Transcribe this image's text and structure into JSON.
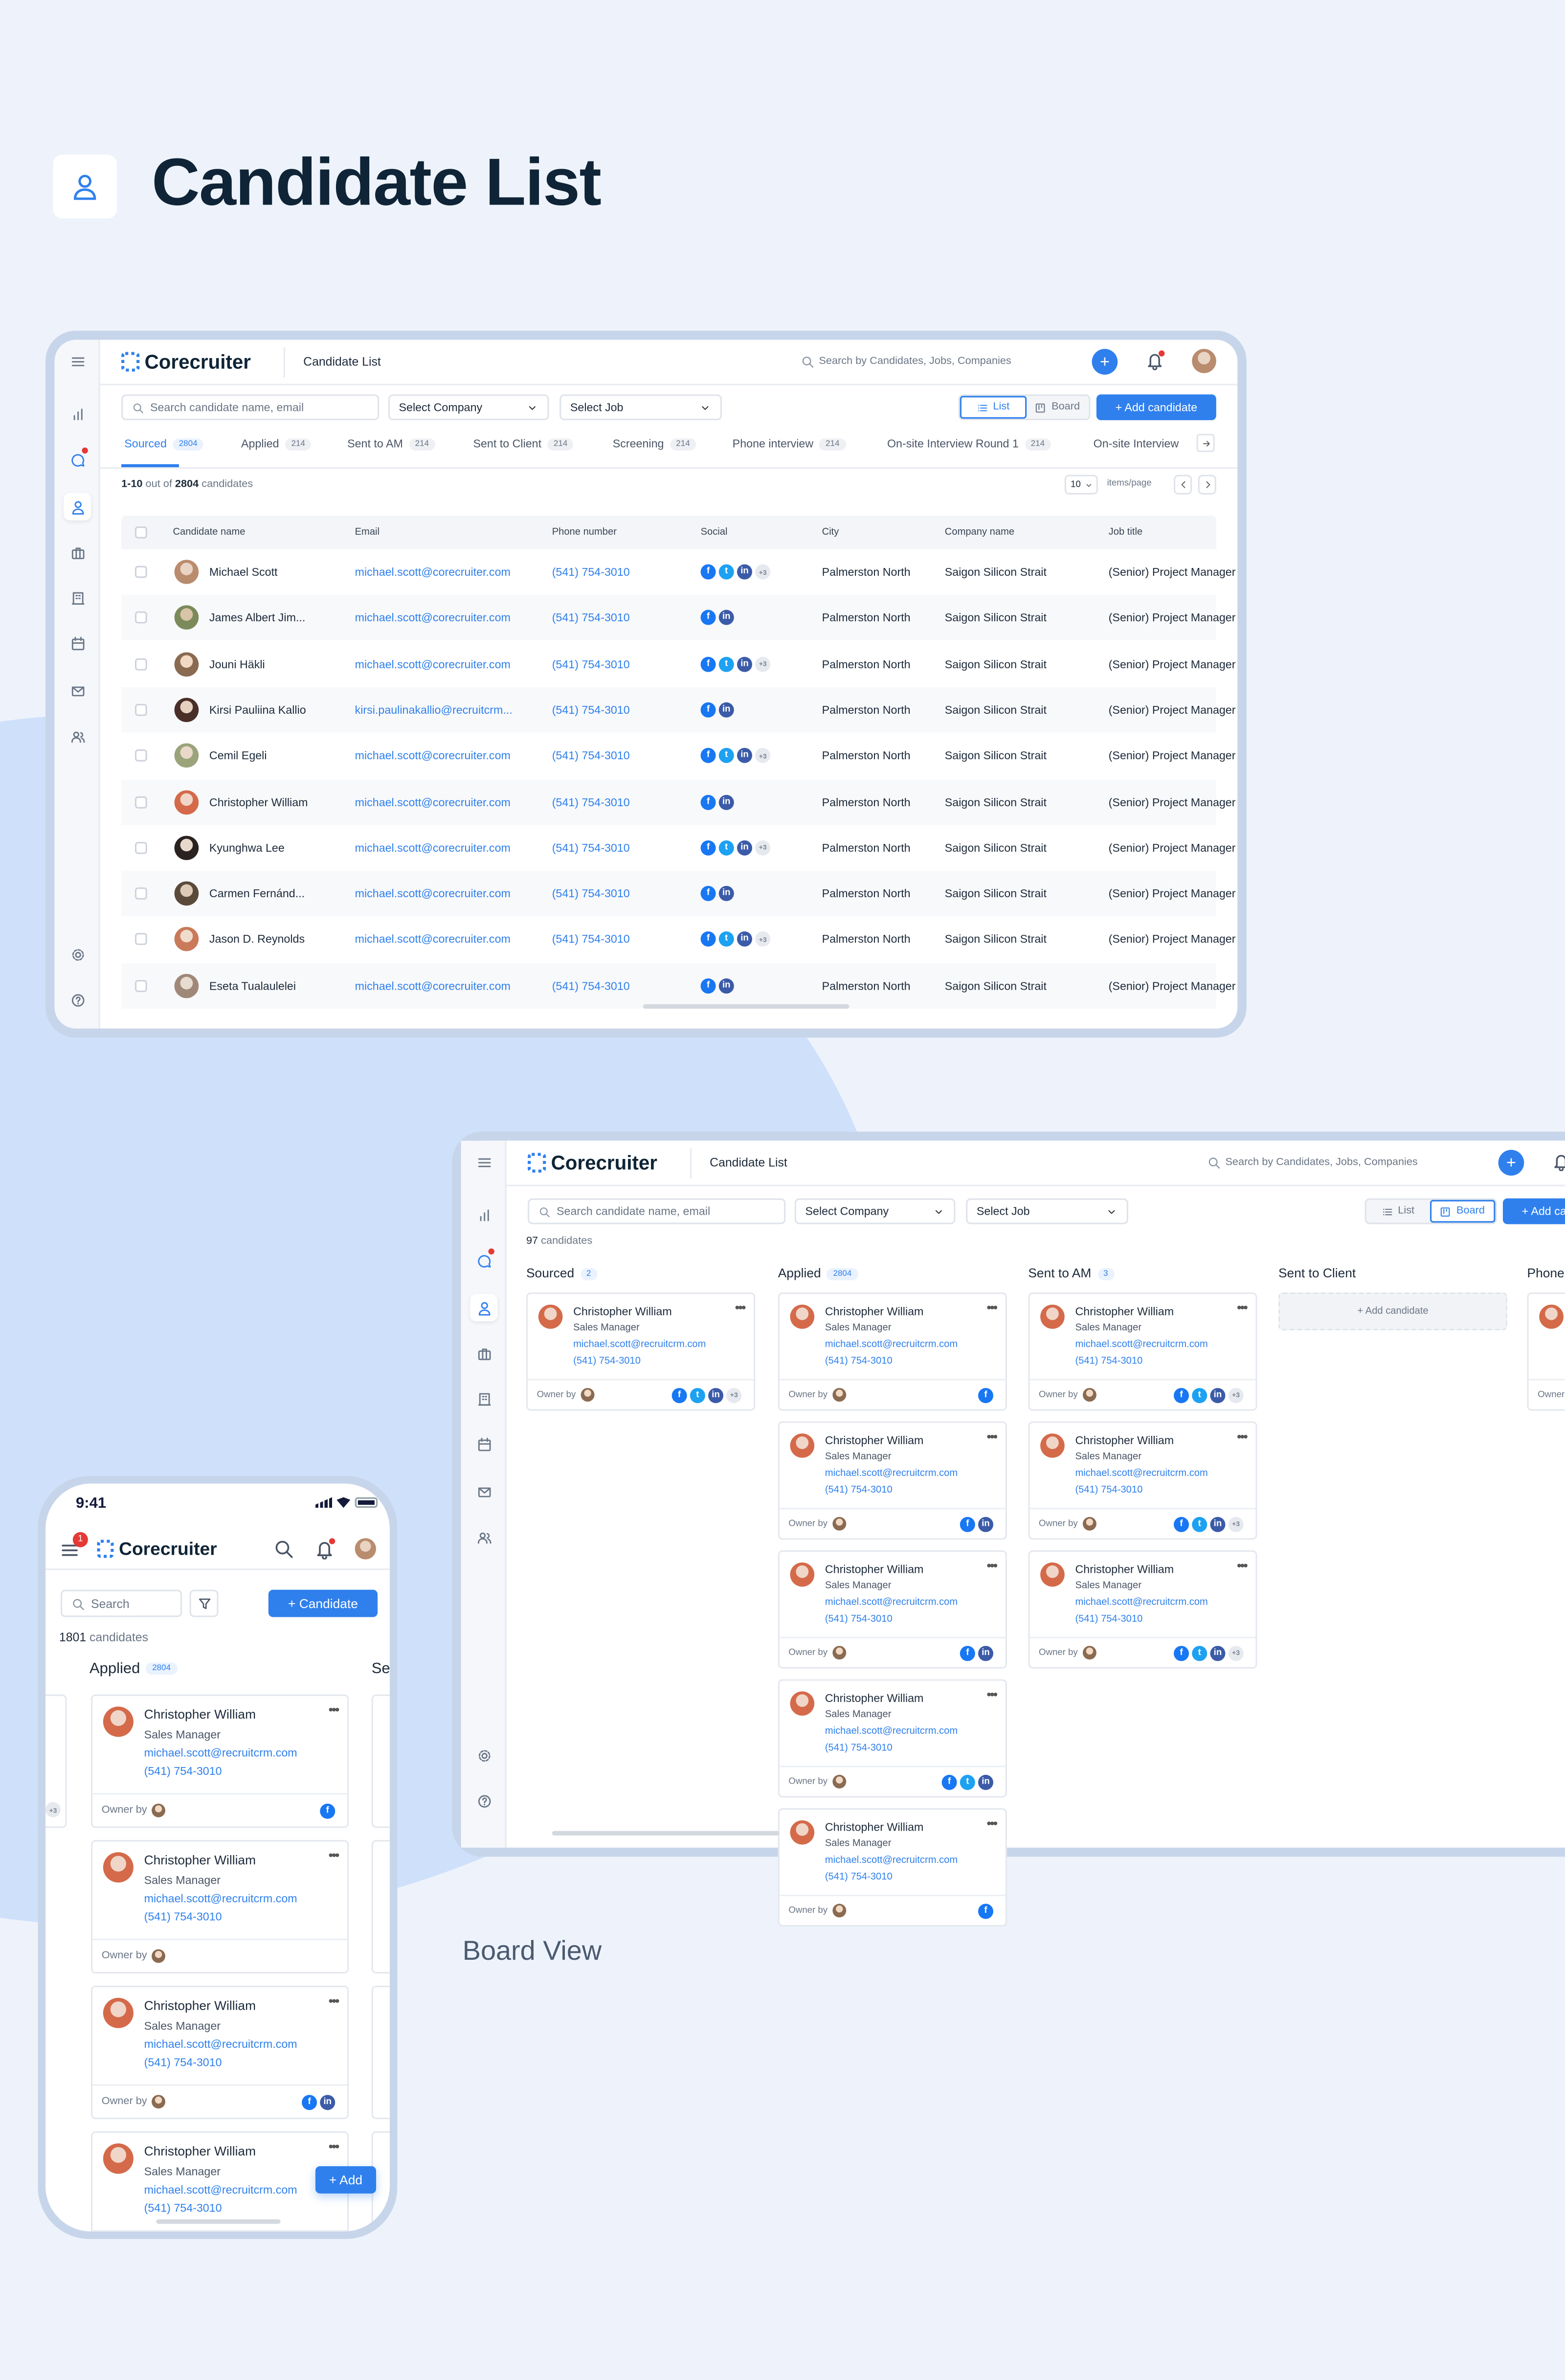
{
  "page": {
    "title": "Candidate List",
    "board_caption": "Board View",
    "icon": "user-icon"
  },
  "colors": {
    "accent": "#2f80ed",
    "facebook": "#1877f2",
    "twitter": "#1da1f2",
    "linkedin": "#3b5ba8",
    "notification": "#e53935",
    "title": "#0f2436"
  },
  "app": {
    "brand": "Corecruiter",
    "page_name": "Candidate List",
    "global_search_placeholder": "Search by Candidates, Jobs, Companies"
  },
  "sidebar": {
    "icons": [
      "menu-icon",
      "chart-icon",
      "chat-icon",
      "user-icon",
      "briefcase-icon",
      "building-icon",
      "calendar-icon",
      "mail-icon",
      "users-icon",
      "settings-icon",
      "help-icon"
    ]
  },
  "toolbar": {
    "search_placeholder": "Search candidate name, email",
    "company_select": "Select Company",
    "job_select": "Select Job",
    "list_label": "List",
    "board_label": "Board",
    "add_label": "+ Add candidate"
  },
  "list_view": {
    "tabs": [
      {
        "label": "Sourced",
        "count": "2804"
      },
      {
        "label": "Applied",
        "count": "214"
      },
      {
        "label": "Sent to AM",
        "count": "214"
      },
      {
        "label": "Sent to Client",
        "count": "214"
      },
      {
        "label": "Screening",
        "count": "214"
      },
      {
        "label": "Phone interview",
        "count": "214"
      },
      {
        "label": "On-site Interview Round 1",
        "count": "214"
      },
      {
        "label": "On-site Interview",
        "count": ""
      }
    ],
    "active_tab": "Sourced",
    "summary_range": "1-10",
    "summary_mid": " out of ",
    "summary_total": "2804",
    "summary_suffix": " candidates",
    "page_size": "10",
    "page_size_label": "items/page",
    "columns": [
      "Candidate name",
      "Email",
      "Phone number",
      "Social",
      "City",
      "Company name",
      "Job title"
    ],
    "rows": [
      {
        "name": "Michael Scott",
        "email": "michael.scott@corecruiter.com",
        "phone": "(541) 754-3010",
        "social": [
          "facebook",
          "twitter",
          "linkedin"
        ],
        "more": "+3",
        "city": "Palmerston North",
        "company": "Saigon Silicon Strait",
        "job": "(Senior) Project Manager"
      },
      {
        "name": "James Albert Jim...",
        "email": "michael.scott@corecruiter.com",
        "phone": "(541) 754-3010",
        "social": [
          "facebook",
          "linkedin"
        ],
        "more": "",
        "city": "Palmerston North",
        "company": "Saigon Silicon Strait",
        "job": "(Senior) Project Manager"
      },
      {
        "name": "Jouni Häkli",
        "email": "michael.scott@corecruiter.com",
        "phone": "(541) 754-3010",
        "social": [
          "facebook",
          "twitter",
          "linkedin"
        ],
        "more": "+3",
        "city": "Palmerston North",
        "company": "Saigon Silicon Strait",
        "job": "(Senior) Project Manager"
      },
      {
        "name": "Kirsi Pauliina Kallio",
        "email": "kirsi.paulinakallio@recruitcrm...",
        "phone": "(541) 754-3010",
        "social": [
          "facebook",
          "linkedin"
        ],
        "more": "",
        "city": "Palmerston North",
        "company": "Saigon Silicon Strait",
        "job": "(Senior) Project Manager"
      },
      {
        "name": "Cemil Egeli",
        "email": "michael.scott@corecruiter.com",
        "phone": "(541) 754-3010",
        "social": [
          "facebook",
          "twitter",
          "linkedin"
        ],
        "more": "+3",
        "city": "Palmerston North",
        "company": "Saigon Silicon Strait",
        "job": "(Senior) Project Manager"
      },
      {
        "name": "Christopher William",
        "email": "michael.scott@corecruiter.com",
        "phone": "(541) 754-3010",
        "social": [
          "facebook",
          "linkedin"
        ],
        "more": "",
        "city": "Palmerston North",
        "company": "Saigon Silicon Strait",
        "job": "(Senior) Project Manager"
      },
      {
        "name": "Kyunghwa Lee",
        "email": "michael.scott@corecruiter.com",
        "phone": "(541) 754-3010",
        "social": [
          "facebook",
          "twitter",
          "linkedin"
        ],
        "more": "+3",
        "city": "Palmerston North",
        "company": "Saigon Silicon Strait",
        "job": "(Senior) Project Manager"
      },
      {
        "name": "Carmen Fernánd...",
        "email": "michael.scott@corecruiter.com",
        "phone": "(541) 754-3010",
        "social": [
          "facebook",
          "linkedin"
        ],
        "more": "",
        "city": "Palmerston North",
        "company": "Saigon Silicon Strait",
        "job": "(Senior) Project Manager"
      },
      {
        "name": "Jason D. Reynolds",
        "email": "michael.scott@corecruiter.com",
        "phone": "(541) 754-3010",
        "social": [
          "facebook",
          "twitter",
          "linkedin"
        ],
        "more": "+3",
        "city": "Palmerston North",
        "company": "Saigon Silicon Strait",
        "job": "(Senior) Project Manager"
      },
      {
        "name": "Eseta Tualaulelei",
        "email": "michael.scott@corecruiter.com",
        "phone": "(541) 754-3010",
        "social": [
          "facebook",
          "linkedin"
        ],
        "more": "",
        "city": "Palmerston North",
        "company": "Saigon Silicon Strait",
        "job": "(Senior) Project Manager"
      }
    ]
  },
  "board_view": {
    "summary_count": "97",
    "summary_suffix": " candidates",
    "add_candidate_label": "+ Add candidate",
    "owner_label": "Owner by",
    "columns": [
      {
        "label": "Sourced",
        "count": "2",
        "cards": [
          {
            "social": [
              "facebook",
              "twitter",
              "linkedin"
            ],
            "more": "+3"
          }
        ]
      },
      {
        "label": "Applied",
        "count": "2804",
        "cards": [
          {
            "social": [
              "facebook"
            ],
            "more": ""
          },
          {
            "social": [
              "facebook",
              "linkedin"
            ],
            "more": ""
          },
          {
            "social": [
              "facebook",
              "linkedin"
            ],
            "more": ""
          },
          {
            "social": [
              "facebook",
              "twitter",
              "linkedin"
            ],
            "more": ""
          },
          {
            "social": [
              "facebook"
            ],
            "more": ""
          }
        ]
      },
      {
        "label": "Sent to AM",
        "count": "3",
        "cards": [
          {
            "social": [
              "facebook",
              "twitter",
              "linkedin"
            ],
            "more": "+3"
          },
          {
            "social": [
              "facebook",
              "twitter",
              "linkedin"
            ],
            "more": "+3"
          },
          {
            "social": [
              "facebook",
              "twitter",
              "linkedin"
            ],
            "more": "+3"
          }
        ]
      },
      {
        "label": "Sent to Client",
        "count": "",
        "cards": []
      },
      {
        "label": "Phone",
        "count": "",
        "cards": [
          {
            "social": [],
            "more": ""
          }
        ]
      }
    ],
    "card": {
      "name": "Christopher William",
      "title": "Sales Manager",
      "email": "michael.scott@recruitcrm.com",
      "phone": "(541) 754-3010"
    }
  },
  "mobile": {
    "time": "9:41",
    "menu_badge": "1",
    "search_placeholder": "Search",
    "add_button": "+ Candidate",
    "summary_count": "1801",
    "summary_suffix": " candidates",
    "column": {
      "label": "Applied",
      "count": "2804"
    },
    "next_column_label": "Ser",
    "cards": [
      {
        "social": [
          "facebook"
        ]
      },
      {
        "social": []
      },
      {
        "social": [
          "facebook",
          "linkedin"
        ]
      },
      {
        "social": []
      }
    ],
    "prev_more": "+3",
    "fab_label": "+ Add"
  }
}
